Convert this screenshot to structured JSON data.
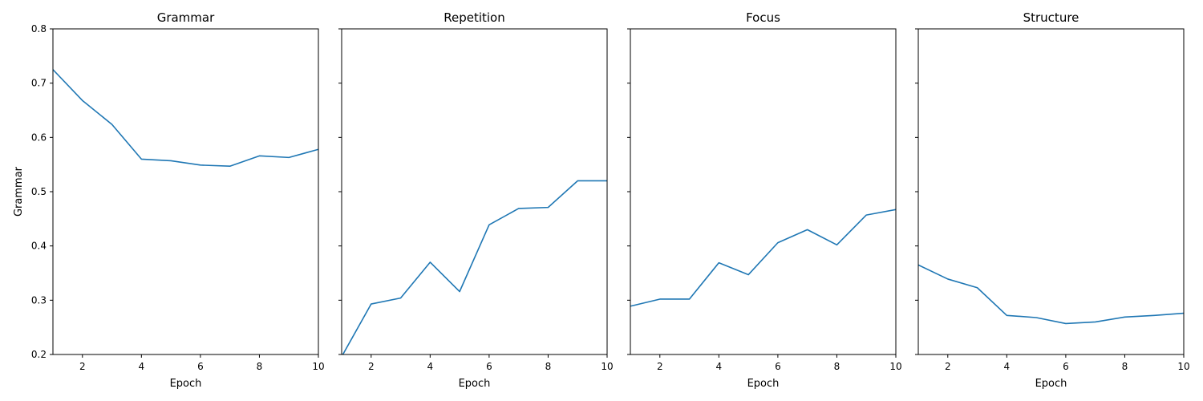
{
  "figure": {
    "sharey": true,
    "ylabel": "Grammar"
  },
  "colors": {
    "line": "#1f77b4",
    "axes": "#000000",
    "background": "#ffffff"
  },
  "chart_data": [
    {
      "type": "line",
      "title": "Grammar",
      "xlabel": "Epoch",
      "ylabel": "Grammar",
      "xlim": [
        1,
        10
      ],
      "ylim": [
        0.2,
        0.8
      ],
      "xticks": [
        2,
        4,
        6,
        8,
        10
      ],
      "yticks": [
        0.2,
        0.3,
        0.4,
        0.5,
        0.6,
        0.7,
        0.8
      ],
      "grid": false,
      "x": [
        1,
        2,
        3,
        4,
        5,
        6,
        7,
        8,
        9,
        10
      ],
      "series": [
        {
          "values": [
            0.725,
            0.668,
            0.624,
            0.56,
            0.557,
            0.549,
            0.547,
            0.566,
            0.563,
            0.578
          ]
        }
      ]
    },
    {
      "type": "line",
      "title": "Repetition",
      "xlabel": "Epoch",
      "ylabel": "",
      "xlim": [
        1,
        10
      ],
      "ylim": [
        0.2,
        0.8
      ],
      "xticks": [
        2,
        4,
        6,
        8,
        10
      ],
      "yticks": [
        0.2,
        0.3,
        0.4,
        0.5,
        0.6,
        0.7,
        0.8
      ],
      "grid": false,
      "x": [
        1,
        2,
        3,
        4,
        5,
        6,
        7,
        8,
        9,
        10
      ],
      "series": [
        {
          "values": [
            0.196,
            0.293,
            0.304,
            0.37,
            0.316,
            0.439,
            0.469,
            0.471,
            0.52,
            0.52
          ]
        }
      ]
    },
    {
      "type": "line",
      "title": "Focus",
      "xlabel": "Epoch",
      "ylabel": "",
      "xlim": [
        1,
        10
      ],
      "ylim": [
        0.2,
        0.8
      ],
      "xticks": [
        2,
        4,
        6,
        8,
        10
      ],
      "yticks": [
        0.2,
        0.3,
        0.4,
        0.5,
        0.6,
        0.7,
        0.8
      ],
      "grid": false,
      "x": [
        1,
        2,
        3,
        4,
        5,
        6,
        7,
        8,
        9,
        10
      ],
      "series": [
        {
          "values": [
            0.289,
            0.302,
            0.302,
            0.369,
            0.347,
            0.406,
            0.43,
            0.402,
            0.457,
            0.467
          ]
        }
      ]
    },
    {
      "type": "line",
      "title": "Structure",
      "xlabel": "Epoch",
      "ylabel": "",
      "xlim": [
        1,
        10
      ],
      "ylim": [
        0.2,
        0.8
      ],
      "xticks": [
        2,
        4,
        6,
        8,
        10
      ],
      "yticks": [
        0.2,
        0.3,
        0.4,
        0.5,
        0.6,
        0.7,
        0.8
      ],
      "grid": false,
      "x": [
        1,
        2,
        3,
        4,
        5,
        6,
        7,
        8,
        9,
        10
      ],
      "series": [
        {
          "values": [
            0.365,
            0.339,
            0.323,
            0.272,
            0.268,
            0.257,
            0.26,
            0.269,
            0.272,
            0.276
          ]
        }
      ]
    }
  ]
}
